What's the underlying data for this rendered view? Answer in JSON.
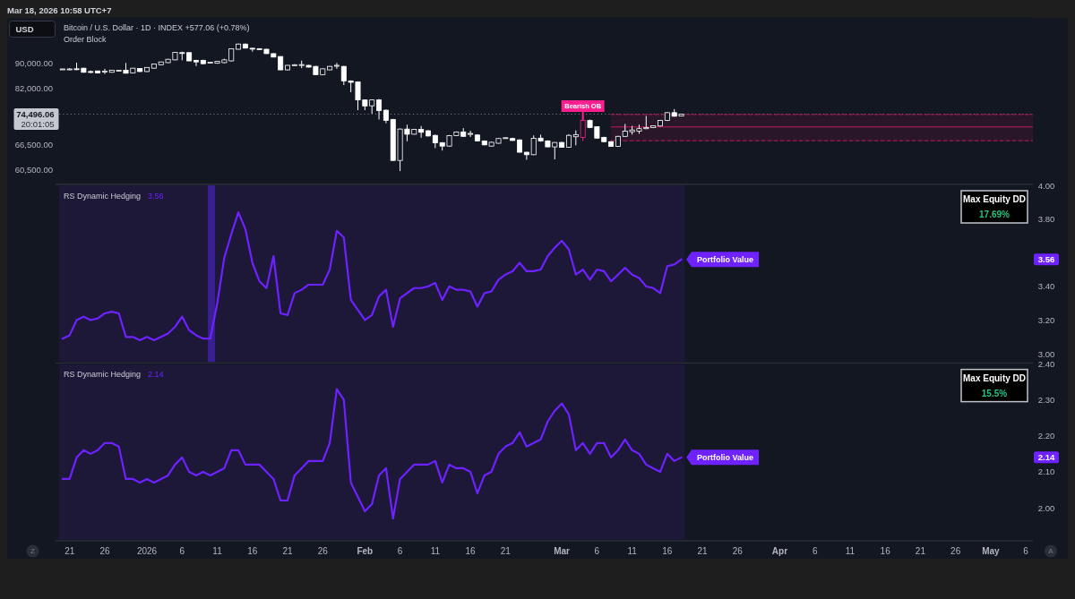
{
  "chart_data": [
    {
      "type": "candlestick",
      "title": "Bitcoin / U.S. Dollar · 1D · INDEX +577.06 (+0.78%)",
      "subtitle": "Order Block",
      "x": [
        "2025-12-20",
        "2025-12-21",
        "2025-12-22",
        "2025-12-23",
        "2025-12-24",
        "2025-12-25",
        "2025-12-26",
        "2025-12-27",
        "2025-12-28",
        "2025-12-29",
        "2025-12-30",
        "2025-12-31",
        "2026-01-01",
        "2026-01-02",
        "2026-01-03",
        "2026-01-04",
        "2026-01-05",
        "2026-01-06",
        "2026-01-07",
        "2026-01-08",
        "2026-01-09",
        "2026-01-10",
        "2026-01-11",
        "2026-01-12",
        "2026-01-13",
        "2026-01-14",
        "2026-01-15",
        "2026-01-16",
        "2026-01-17",
        "2026-01-18",
        "2026-01-19",
        "2026-01-20",
        "2026-01-21",
        "2026-01-22",
        "2026-01-23",
        "2026-01-24",
        "2026-01-25",
        "2026-01-26",
        "2026-01-27",
        "2026-01-28",
        "2026-01-29",
        "2026-01-30",
        "2026-01-31",
        "2026-02-01",
        "2026-02-02",
        "2026-02-03",
        "2026-02-04",
        "2026-02-05",
        "2026-02-06",
        "2026-02-07",
        "2026-02-08",
        "2026-02-09",
        "2026-02-10",
        "2026-02-11",
        "2026-02-12",
        "2026-02-13",
        "2026-02-14",
        "2026-02-15",
        "2026-02-16",
        "2026-02-17",
        "2026-02-18",
        "2026-02-19",
        "2026-02-20",
        "2026-02-21",
        "2026-02-22",
        "2026-02-23",
        "2026-02-24",
        "2026-02-25",
        "2026-02-26",
        "2026-02-27",
        "2026-02-28",
        "2026-03-01",
        "2026-03-02",
        "2026-03-03",
        "2026-03-04",
        "2026-03-05",
        "2026-03-06",
        "2026-03-07",
        "2026-03-08",
        "2026-03-09",
        "2026-03-10",
        "2026-03-11",
        "2026-03-12",
        "2026-03-13",
        "2026-03-14",
        "2026-03-15",
        "2026-03-16",
        "2026-03-17",
        "2026-03-18"
      ],
      "ohlc": [
        [
          88150,
          88250,
          88050,
          88200
        ],
        [
          88100,
          88450,
          87800,
          88200
        ],
        [
          88250,
          90300,
          87800,
          88200
        ],
        [
          88450,
          88550,
          86950,
          87100
        ],
        [
          87350,
          87700,
          86800,
          87300
        ],
        [
          87550,
          87650,
          86800,
          86900
        ],
        [
          87450,
          88250,
          86550,
          87500
        ],
        [
          87100,
          87900,
          87000,
          87800
        ],
        [
          87700,
          87850,
          87550,
          87750
        ],
        [
          87800,
          90200,
          86700,
          86800
        ],
        [
          86900,
          88550,
          86800,
          88450
        ],
        [
          88350,
          88500,
          87200,
          87350
        ],
        [
          87350,
          88800,
          87200,
          88700
        ],
        [
          88450,
          90000,
          88300,
          89850
        ],
        [
          89600,
          90600,
          89500,
          90550
        ],
        [
          90300,
          91600,
          90200,
          91450
        ],
        [
          91250,
          94000,
          91100,
          93850
        ],
        [
          93750,
          94100,
          91100,
          93700
        ],
        [
          93750,
          93900,
          90800,
          90900
        ],
        [
          91100,
          91250,
          89150,
          90550
        ],
        [
          91100,
          91300,
          89700,
          89950
        ],
        [
          90400,
          90550,
          90300,
          90450
        ],
        [
          90100,
          90900,
          89950,
          90750
        ],
        [
          90300,
          91650,
          90100,
          91250
        ],
        [
          90900,
          95200,
          90700,
          95100
        ],
        [
          94950,
          97000,
          94800,
          96800
        ],
        [
          96800,
          97000,
          95200,
          95350
        ],
        [
          95300,
          95400,
          94100,
          95200
        ],
        [
          95150,
          95300,
          94950,
          95100
        ],
        [
          94950,
          95100,
          93300,
          93400
        ],
        [
          93400,
          93500,
          92100,
          92200
        ],
        [
          92400,
          92500,
          87800,
          87900
        ],
        [
          87900,
          89500,
          87700,
          89400
        ],
        [
          89500,
          89800,
          89300,
          89600
        ],
        [
          89600,
          91000,
          88450,
          89650
        ],
        [
          89400,
          89550,
          88700,
          88800
        ],
        [
          89050,
          89200,
          86200,
          86350
        ],
        [
          86350,
          88350,
          86200,
          88250
        ],
        [
          87900,
          89200,
          87800,
          89050
        ],
        [
          89300,
          90200,
          88250,
          89400
        ],
        [
          89050,
          89200,
          83050,
          84350
        ],
        [
          84350,
          84500,
          80850,
          83900
        ],
        [
          84000,
          84200,
          75600,
          78550
        ],
        [
          78550,
          78700,
          75600,
          76800
        ],
        [
          76850,
          78700,
          74600,
          78550
        ],
        [
          78550,
          78800,
          73000,
          75500
        ],
        [
          75600,
          75800,
          72000,
          72750
        ],
        [
          73000,
          73200,
          62500,
          62650
        ],
        [
          62650,
          70600,
          60200,
          70450
        ],
        [
          70450,
          71600,
          67300,
          69100
        ],
        [
          69100,
          70500,
          69000,
          70350
        ],
        [
          70350,
          71250,
          68200,
          69600
        ],
        [
          70000,
          70200,
          68500,
          68650
        ],
        [
          68800,
          69000,
          65600,
          66900
        ],
        [
          66950,
          67100,
          65000,
          66100
        ],
        [
          66100,
          68900,
          66000,
          68750
        ],
        [
          68750,
          69800,
          68600,
          69700
        ],
        [
          69700,
          70700,
          68450,
          68550
        ],
        [
          69200,
          70000,
          68400,
          69300
        ],
        [
          68900,
          69100,
          67300,
          67400
        ],
        [
          67400,
          67500,
          66300,
          66400
        ],
        [
          66100,
          67200,
          66000,
          67050
        ],
        [
          66800,
          68100,
          66700,
          68000
        ],
        [
          68150,
          68300,
          68000,
          68200
        ],
        [
          68000,
          68200,
          67400,
          67500
        ],
        [
          67650,
          67800,
          64500,
          64600
        ],
        [
          64600,
          64700,
          62800,
          64000
        ],
        [
          64000,
          68800,
          63900,
          68050
        ],
        [
          68100,
          69000,
          67200,
          67400
        ],
        [
          67400,
          67550,
          65800,
          65900
        ],
        [
          65900,
          67100,
          62900,
          67000
        ],
        [
          67000,
          67200,
          65700,
          65800
        ],
        [
          65800,
          69100,
          65700,
          68800
        ],
        [
          68450,
          70100,
          66300,
          69000
        ],
        [
          68300,
          72900,
          67400,
          72750
        ],
        [
          72750,
          73000,
          70700,
          70850
        ],
        [
          71050,
          71200,
          68000,
          68100
        ],
        [
          68300,
          68450,
          67100,
          67200
        ],
        [
          67200,
          67350,
          65900,
          66050
        ],
        [
          66050,
          68700,
          65900,
          68550
        ],
        [
          68550,
          71800,
          68400,
          69900
        ],
        [
          69750,
          71300,
          69000,
          70200
        ],
        [
          69900,
          71600,
          69200,
          70550
        ],
        [
          70550,
          74000,
          70400,
          70850
        ],
        [
          70850,
          71400,
          70700,
          71300
        ],
        [
          71250,
          72900,
          71100,
          72750
        ],
        [
          72750,
          75000,
          72600,
          74900
        ],
        [
          74900,
          75900,
          73800,
          73900
        ],
        [
          73950,
          74600,
          73900,
          74500
        ]
      ],
      "colors": [
        "#ffffff",
        "#ffffff",
        "#ffffff",
        "#ffffff",
        "#ffffff",
        "#ffffff",
        "#ffffff",
        "#ffffff",
        "#ffffff",
        "#ffffff",
        "#ffffff",
        "#ffffff",
        "#ffffff",
        "#ffffff",
        "#ffffff",
        "#ffffff",
        "#ffffff",
        "#ffffff",
        "#ffffff",
        "#ffffff",
        "#ffffff",
        "#ffffff",
        "#ffffff",
        "#ffffff",
        "#ffffff",
        "#ffffff",
        "#ffffff",
        "#ffffff",
        "#ffffff",
        "#ffffff",
        "#ffffff",
        "#ffffff",
        "#ffffff",
        "#ffffff",
        "#ffffff",
        "#ffffff",
        "#ffffff",
        "#ffffff",
        "#ffffff",
        "#ffffff",
        "#ffffff",
        "#ffffff",
        "#ffffff",
        "#ffffff",
        "#ffffff",
        "#ffffff",
        "#ffffff",
        "#ffffff",
        "#ffffff",
        "#ffffff",
        "#ffffff",
        "#ffffff",
        "#ffffff",
        "#ffffff",
        "#ffffff",
        "#ffffff",
        "#ffffff",
        "#ffffff",
        "#ffffff",
        "#ffffff",
        "#ffffff",
        "#ffffff",
        "#ffffff",
        "#ffffff",
        "#ffffff",
        "#ffffff",
        "#ffffff",
        "#ffffff",
        "#ffffff",
        "#ffffff",
        "#ffffff",
        "#ffffff",
        "#ffffff",
        "#ffffff",
        "#ff1f8f",
        "#ffffff",
        "#ffffff",
        "#ffffff",
        "#ffffff",
        "#ffffff",
        "#ffffff",
        "#ffffff",
        "#ffffff",
        "#ffffff",
        "#ffffff",
        "#ffffff",
        "#ffffff",
        "#ffffff",
        "#ffffff"
      ],
      "series": [
        {
          "type": "line",
          "x": [
            "2026-03-08",
            "2026-05-07"
          ],
          "values": [
            71000,
            71000
          ],
          "lower": [
            67450,
            67450
          ],
          "upper": [
            74400,
            74400
          ],
          "color": "#c2185b"
        },
        {
          "type": "line",
          "x": [
            "2026-03-08",
            "2026-05-07"
          ],
          "values": [
            74400,
            74400
          ],
          "color": "#c2185b",
          "line_style": "dashed"
        },
        {
          "type": "line",
          "x": [
            "2026-03-08",
            "2026-05-07"
          ],
          "values": [
            67450,
            67450
          ],
          "color": "#c2185b",
          "line_style": "dashed"
        }
      ],
      "xlim": [
        "2025-12-19",
        "2026-05-07"
      ],
      "ylim": [
        57500,
        107000
      ],
      "log": true,
      "tick_labels": "y",
      "yticks": [
        {
          "value": 60500,
          "label": "60,500.00"
        },
        {
          "value": 66500,
          "label": "66,500.00"
        },
        {
          "value": 82000,
          "label": "82,000.00"
        },
        {
          "value": 90000,
          "label": "90,000.00"
        }
      ],
      "ref_lines": [
        {
          "axis": "y",
          "value": 74496.06,
          "label": "74,496.06",
          "color": "#c5c8cf",
          "line_style": "dotted"
        }
      ],
      "annotations": [
        "Mar 18, 2026 10:58 UTC+7",
        "USD",
        "20:01:05",
        {
          "text": "Bearish OB",
          "x": "2026-03-04",
          "y": 72900
        }
      ]
    },
    {
      "type": "line",
      "title": "RS Dynamic Hedging",
      "subtitle": "3.56",
      "x": [
        "2025-12-20",
        "2025-12-21",
        "2025-12-22",
        "2025-12-23",
        "2025-12-24",
        "2025-12-25",
        "2025-12-26",
        "2025-12-27",
        "2025-12-28",
        "2025-12-29",
        "2025-12-30",
        "2025-12-31",
        "2026-01-01",
        "2026-01-02",
        "2026-01-03",
        "2026-01-04",
        "2026-01-05",
        "2026-01-06",
        "2026-01-07",
        "2026-01-08",
        "2026-01-09",
        "2026-01-10",
        "2026-01-11",
        "2026-01-12",
        "2026-01-13",
        "2026-01-14",
        "2026-01-15",
        "2026-01-16",
        "2026-01-17",
        "2026-01-18",
        "2026-01-19",
        "2026-01-20",
        "2026-01-21",
        "2026-01-22",
        "2026-01-23",
        "2026-01-24",
        "2026-01-25",
        "2026-01-26",
        "2026-01-27",
        "2026-01-28",
        "2026-01-29",
        "2026-01-30",
        "2026-01-31",
        "2026-02-01",
        "2026-02-02",
        "2026-02-03",
        "2026-02-04",
        "2026-02-05",
        "2026-02-06",
        "2026-02-07",
        "2026-02-08",
        "2026-02-09",
        "2026-02-10",
        "2026-02-11",
        "2026-02-12",
        "2026-02-13",
        "2026-02-14",
        "2026-02-15",
        "2026-02-16",
        "2026-02-17",
        "2026-02-18",
        "2026-02-19",
        "2026-02-20",
        "2026-02-21",
        "2026-02-22",
        "2026-02-23",
        "2026-02-24",
        "2026-02-25",
        "2026-02-26",
        "2026-02-27",
        "2026-02-28",
        "2026-03-01",
        "2026-03-02",
        "2026-03-03",
        "2026-03-04",
        "2026-03-05",
        "2026-03-06",
        "2026-03-07",
        "2026-03-08",
        "2026-03-09",
        "2026-03-10",
        "2026-03-11",
        "2026-03-12",
        "2026-03-13",
        "2026-03-14",
        "2026-03-15",
        "2026-03-16",
        "2026-03-17",
        "2026-03-18"
      ],
      "series": [
        {
          "name": "Portfolio Value",
          "color": "#6e22ff",
          "values": [
            3.09,
            3.11,
            3.2,
            3.22,
            3.2,
            3.21,
            3.24,
            3.25,
            3.24,
            3.1,
            3.1,
            3.08,
            3.1,
            3.08,
            3.1,
            3.12,
            3.16,
            3.22,
            3.14,
            3.11,
            3.09,
            3.09,
            3.3,
            3.57,
            3.71,
            3.84,
            3.74,
            3.54,
            3.43,
            3.39,
            3.58,
            3.24,
            3.23,
            3.36,
            3.38,
            3.41,
            3.41,
            3.41,
            3.5,
            3.73,
            3.69,
            3.32,
            3.26,
            3.2,
            3.23,
            3.34,
            3.38,
            3.16,
            3.33,
            3.36,
            3.39,
            3.39,
            3.4,
            3.42,
            3.32,
            3.4,
            3.38,
            3.38,
            3.37,
            3.28,
            3.36,
            3.37,
            3.44,
            3.47,
            3.49,
            3.54,
            3.49,
            3.49,
            3.5,
            3.58,
            3.63,
            3.67,
            3.62,
            3.47,
            3.5,
            3.44,
            3.5,
            3.49,
            3.43,
            3.47,
            3.51,
            3.47,
            3.45,
            3.4,
            3.39,
            3.36,
            3.52,
            3.53,
            3.56
          ]
        }
      ],
      "xlim": [
        "2025-12-19",
        "2026-05-07"
      ],
      "ylim": [
        2.95,
        4.0
      ],
      "tick_labels": "y",
      "yticks": [
        {
          "value": 3,
          "label": "3.00"
        },
        {
          "value": 3.2,
          "label": "3.20"
        },
        {
          "value": 3.4,
          "label": "3.40"
        },
        {
          "value": 3.8,
          "label": "3.80"
        },
        {
          "value": 4,
          "label": "4.00"
        }
      ],
      "bands": [
        {
          "axis": "x",
          "from": "2025-12-19T12:00",
          "to": "2026-03-18T12:00",
          "color": "#1d1738"
        },
        {
          "axis": "x",
          "from": "2026-01-09T16:00",
          "to": "2026-01-10T16:00",
          "color": "#3a1f93"
        }
      ],
      "annotations": [
        "Max Equity DD",
        "17.69%",
        "3.56"
      ]
    },
    {
      "type": "line",
      "title": "RS Dynamic Hedging",
      "subtitle": "2.14",
      "x": [
        "2025-12-20",
        "2025-12-21",
        "2025-12-22",
        "2025-12-23",
        "2025-12-24",
        "2025-12-25",
        "2025-12-26",
        "2025-12-27",
        "2025-12-28",
        "2025-12-29",
        "2025-12-30",
        "2025-12-31",
        "2026-01-01",
        "2026-01-02",
        "2026-01-03",
        "2026-01-04",
        "2026-01-05",
        "2026-01-06",
        "2026-01-07",
        "2026-01-08",
        "2026-01-09",
        "2026-01-10",
        "2026-01-11",
        "2026-01-12",
        "2026-01-13",
        "2026-01-14",
        "2026-01-15",
        "2026-01-16",
        "2026-01-17",
        "2026-01-18",
        "2026-01-19",
        "2026-01-20",
        "2026-01-21",
        "2026-01-22",
        "2026-01-23",
        "2026-01-24",
        "2026-01-25",
        "2026-01-26",
        "2026-01-27",
        "2026-01-28",
        "2026-01-29",
        "2026-01-30",
        "2026-01-31",
        "2026-02-01",
        "2026-02-02",
        "2026-02-03",
        "2026-02-04",
        "2026-02-05",
        "2026-02-06",
        "2026-02-07",
        "2026-02-08",
        "2026-02-09",
        "2026-02-10",
        "2026-02-11",
        "2026-02-12",
        "2026-02-13",
        "2026-02-14",
        "2026-02-15",
        "2026-02-16",
        "2026-02-17",
        "2026-02-18",
        "2026-02-19",
        "2026-02-20",
        "2026-02-21",
        "2026-02-22",
        "2026-02-23",
        "2026-02-24",
        "2026-02-25",
        "2026-02-26",
        "2026-02-27",
        "2026-02-28",
        "2026-03-01",
        "2026-03-02",
        "2026-03-03",
        "2026-03-04",
        "2026-03-05",
        "2026-03-06",
        "2026-03-07",
        "2026-03-08",
        "2026-03-09",
        "2026-03-10",
        "2026-03-11",
        "2026-03-12",
        "2026-03-13",
        "2026-03-14",
        "2026-03-15",
        "2026-03-16",
        "2026-03-17",
        "2026-03-18"
      ],
      "series": [
        {
          "name": "Portfolio Value",
          "color": "#6e22ff",
          "values": [
            2.08,
            2.08,
            2.14,
            2.16,
            2.15,
            2.16,
            2.18,
            2.18,
            2.17,
            2.08,
            2.08,
            2.07,
            2.08,
            2.07,
            2.08,
            2.09,
            2.12,
            2.14,
            2.1,
            2.09,
            2.1,
            2.09,
            2.1,
            2.11,
            2.16,
            2.16,
            2.12,
            2.12,
            2.12,
            2.1,
            2.08,
            2.02,
            2.02,
            2.09,
            2.11,
            2.13,
            2.13,
            2.13,
            2.18,
            2.33,
            2.3,
            2.07,
            2.03,
            1.99,
            2.01,
            2.09,
            2.11,
            1.97,
            2.08,
            2.1,
            2.12,
            2.12,
            2.12,
            2.13,
            2.07,
            2.12,
            2.11,
            2.11,
            2.1,
            2.04,
            2.09,
            2.1,
            2.15,
            2.17,
            2.18,
            2.21,
            2.17,
            2.18,
            2.19,
            2.24,
            2.27,
            2.29,
            2.26,
            2.16,
            2.18,
            2.15,
            2.18,
            2.18,
            2.14,
            2.16,
            2.19,
            2.16,
            2.15,
            2.12,
            2.11,
            2.1,
            2.15,
            2.13,
            2.14
          ]
        }
      ],
      "xlim": [
        "2025-12-19",
        "2026-05-07"
      ],
      "ylim": [
        1.91,
        2.4
      ],
      "xticks": [
        {
          "value": "2025-12-21",
          "label": "21"
        },
        {
          "value": "2025-12-26",
          "label": "26"
        },
        {
          "value": "2026-01-01",
          "label": "2026"
        },
        {
          "value": "2026-01-06",
          "label": "6"
        },
        {
          "value": "2026-01-11",
          "label": "11"
        },
        {
          "value": "2026-01-16",
          "label": "16"
        },
        {
          "value": "2026-01-21",
          "label": "21"
        },
        {
          "value": "2026-01-26",
          "label": "26"
        },
        {
          "value": "2026-02-01",
          "label": "Feb"
        },
        {
          "value": "2026-02-06",
          "label": "6"
        },
        {
          "value": "2026-02-11",
          "label": "11"
        },
        {
          "value": "2026-02-16",
          "label": "16"
        },
        {
          "value": "2026-02-21",
          "label": "21"
        },
        {
          "value": "2026-03-01",
          "label": "Mar"
        },
        {
          "value": "2026-03-06",
          "label": "6"
        },
        {
          "value": "2026-03-11",
          "label": "11"
        },
        {
          "value": "2026-03-16",
          "label": "16"
        },
        {
          "value": "2026-03-21",
          "label": "21"
        },
        {
          "value": "2026-03-26",
          "label": "26"
        },
        {
          "value": "2026-04-01",
          "label": "Apr"
        },
        {
          "value": "2026-04-06",
          "label": "6"
        },
        {
          "value": "2026-04-11",
          "label": "11"
        },
        {
          "value": "2026-04-16",
          "label": "16"
        },
        {
          "value": "2026-04-21",
          "label": "21"
        },
        {
          "value": "2026-04-26",
          "label": "26"
        },
        {
          "value": "2026-05-01",
          "label": "May"
        },
        {
          "value": "2026-05-06",
          "label": "6"
        }
      ],
      "yticks": [
        {
          "value": 2,
          "label": "2.00"
        },
        {
          "value": 2.1,
          "label": "2.10"
        },
        {
          "value": 2.2,
          "label": "2.20"
        },
        {
          "value": 2.3,
          "label": "2.30"
        },
        {
          "value": 2.4,
          "label": "2.40"
        }
      ],
      "bands": [
        {
          "axis": "x",
          "from": "2025-12-19T12:00",
          "to": "2026-03-18T12:00",
          "color": "#1d1738"
        }
      ],
      "annotations": [
        "Max Equity DD",
        "15.5%",
        "2.14",
        "Z",
        "A"
      ]
    }
  ]
}
